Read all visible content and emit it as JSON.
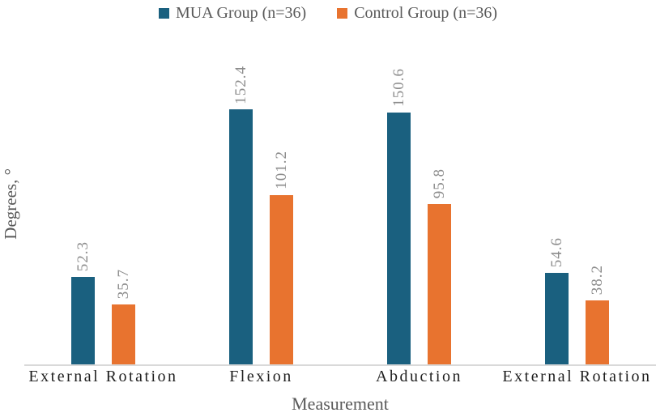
{
  "legend": {
    "items": [
      {
        "label": "MUA Group (n=36)",
        "color": "#1a607f"
      },
      {
        "label": "Control Group (n=36)",
        "color": "#e8732f"
      }
    ]
  },
  "chart_data": {
    "type": "bar",
    "categories": [
      "External Rotation",
      "Flexion",
      "Abduction",
      "External Rotation"
    ],
    "series": [
      {
        "name": "MUA Group (n=36)",
        "color": "#1a607f",
        "values": [
          52.3,
          152.4,
          150.6,
          54.6
        ]
      },
      {
        "name": "Control Group (n=36)",
        "color": "#e8732f",
        "values": [
          35.7,
          101.2,
          95.8,
          38.2
        ]
      }
    ],
    "title": "",
    "xlabel": "Measurement",
    "ylabel": "Degrees, °",
    "ylim": [
      0,
      200
    ],
    "grid": false,
    "y_axis_ticks_visible": false,
    "legend_position": "top",
    "data_label_style": "rotated 90° above bars, one decimal",
    "axis_line_color": "#d9d9d9"
  }
}
